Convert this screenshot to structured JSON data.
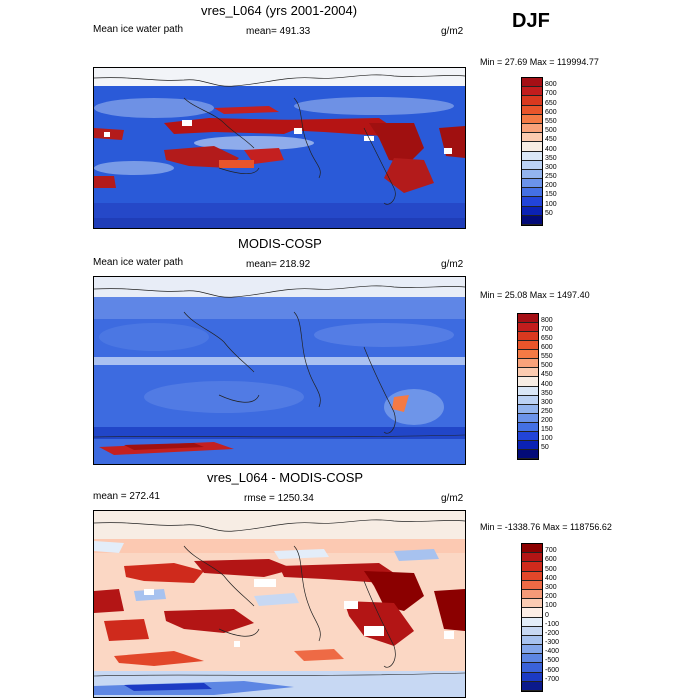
{
  "season": "DJF",
  "panels": [
    {
      "id": "model",
      "title": "vres_L064 (yrs 2001-2004)",
      "left_label": "Mean ice water path",
      "center_label": "mean= 491.33",
      "units": "g/m2",
      "minmax": "Min =  27.69 Max = 119994.77",
      "colorbar_labels": [
        "800",
        "700",
        "650",
        "600",
        "550",
        "500",
        "450",
        "400",
        "350",
        "300",
        "250",
        "200",
        "150",
        "100",
        "50"
      ],
      "colorbar_colors": [
        "#a50f15",
        "#c21d1d",
        "#d9391f",
        "#e9552b",
        "#f47a45",
        "#f9a27a",
        "#fccbb0",
        "#f7ede4",
        "#dae7f7",
        "#bcd2f4",
        "#93b4ee",
        "#6b93ea",
        "#4470e4",
        "#2244d8",
        "#0b22b4",
        "#030b78"
      ]
    },
    {
      "id": "obs",
      "title": "MODIS-COSP",
      "left_label": "Mean ice water path",
      "center_label": "mean= 218.92",
      "units": "g/m2",
      "minmax": "Min =  25.08 Max = 1497.40",
      "colorbar_labels": [
        "800",
        "700",
        "650",
        "600",
        "550",
        "500",
        "450",
        "400",
        "350",
        "300",
        "250",
        "200",
        "150",
        "100",
        "50"
      ],
      "colorbar_colors": [
        "#a50f15",
        "#c21d1d",
        "#d9391f",
        "#e9552b",
        "#f47a45",
        "#f9a27a",
        "#fccbb0",
        "#f7ede4",
        "#dae7f7",
        "#bcd2f4",
        "#93b4ee",
        "#6b93ea",
        "#4470e4",
        "#2244d8",
        "#0b22b4",
        "#030b78"
      ]
    },
    {
      "id": "diff",
      "title": "vres_L064 - MODIS-COSP",
      "left_label": "mean = 272.41",
      "center_label": "rmse = 1250.34",
      "units": "g/m2",
      "minmax": "Min = -1338.76 Max = 118756.62",
      "colorbar_labels": [
        "700",
        "600",
        "500",
        "400",
        "300",
        "200",
        "100",
        "0",
        "-100",
        "-200",
        "-300",
        "-400",
        "-500",
        "-600",
        "-700"
      ],
      "colorbar_colors": [
        "#8b0000",
        "#b31515",
        "#cf2a1c",
        "#e2472a",
        "#ee6a45",
        "#f59a78",
        "#fbcbb3",
        "#fdeee6",
        "#e3edf9",
        "#c7d8f3",
        "#a7c2ef",
        "#83a6ea",
        "#5d86e3",
        "#3a62d9",
        "#1c3bc4",
        "#0b1a8c"
      ]
    }
  ]
}
